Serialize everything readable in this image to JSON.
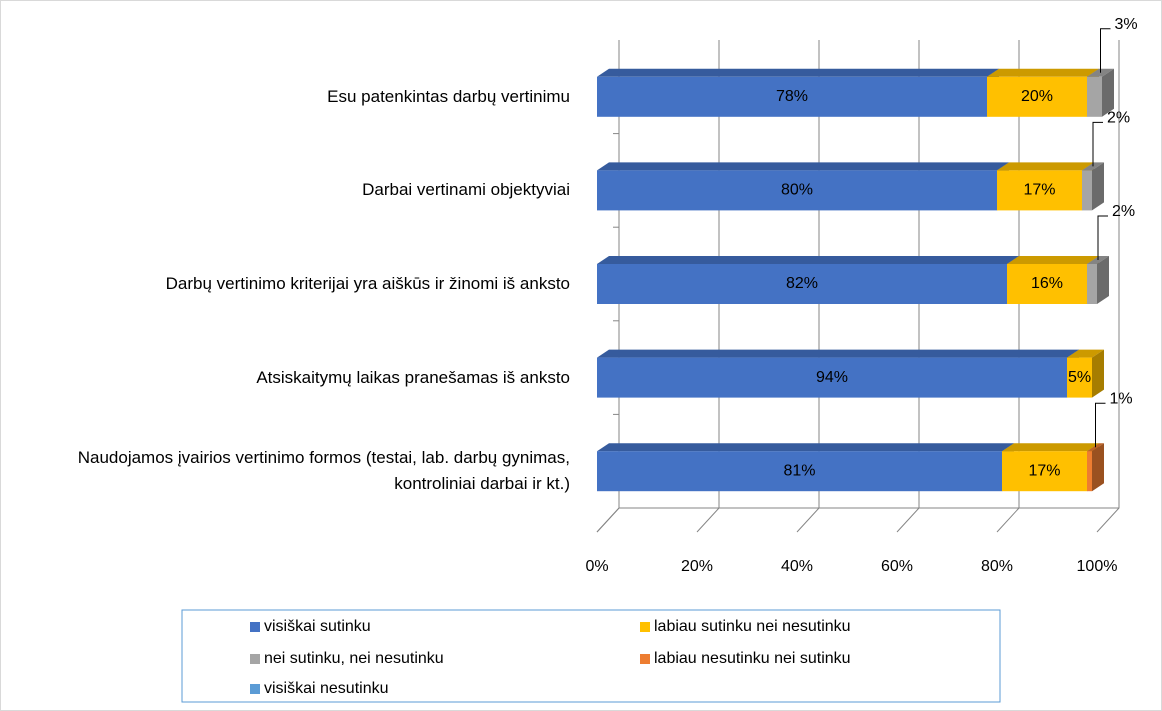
{
  "chart_data": {
    "type": "stacked_bar_horizontal_3d",
    "categories": [
      "Esu patenkintas darbų vertinimu",
      "Darbai vertinami objektyviai",
      "Darbų vertinimo kriterijai yra aiškūs ir žinomi iš anksto",
      "Atsiskaitymų laikas pranešamas iš anksto",
      "Naudojamos įvairios vertinimo formos (testai, lab. darbų gynimas, kontroliniai darbai ir kt.)"
    ],
    "series": [
      {
        "name": "visiškai sutinku",
        "color": "#4472c4",
        "values": [
          78,
          80,
          82,
          94,
          81
        ],
        "value_labels": [
          "78%",
          "80%",
          "82%",
          "94%",
          "81%"
        ]
      },
      {
        "name": "labiau sutinku nei nesutinku",
        "color": "#ffc000",
        "values": [
          20,
          17,
          16,
          5,
          17
        ],
        "value_labels": [
          "20%",
          "17%",
          "16%",
          "5%",
          "17%"
        ]
      },
      {
        "name": "nei sutinku, nei nesutinku",
        "color": "#a5a5a5",
        "values": [
          3,
          2,
          2,
          null,
          null
        ],
        "value_labels": [
          "3%",
          "2%",
          "2%",
          null,
          null
        ]
      },
      {
        "name": "labiau nesutinku nei sutinku",
        "color": "#ed7d31",
        "values": [
          null,
          null,
          null,
          null,
          1
        ],
        "value_labels": [
          null,
          null,
          null,
          null,
          "1%"
        ]
      },
      {
        "name": "visiškai nesutinku",
        "color": "#5b9bd5",
        "values": [
          null,
          null,
          null,
          null,
          null
        ],
        "value_labels": [
          null,
          null,
          null,
          null,
          null
        ]
      }
    ],
    "xlim": [
      0,
      100
    ],
    "xticks": [
      {
        "value": 0,
        "label": "0%"
      },
      {
        "value": 20,
        "label": "20%"
      },
      {
        "value": 40,
        "label": "40%"
      },
      {
        "value": 60,
        "label": "60%"
      },
      {
        "value": 80,
        "label": "80%"
      },
      {
        "value": 100,
        "label": "100%"
      }
    ],
    "grid": true
  }
}
